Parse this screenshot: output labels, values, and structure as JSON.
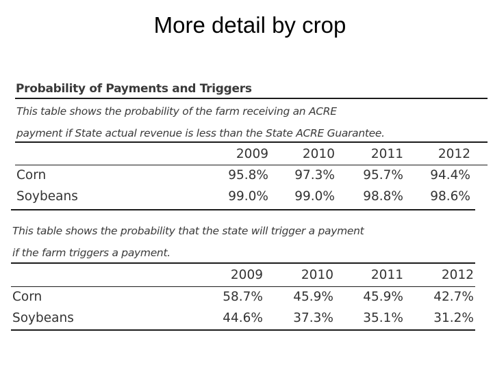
{
  "slide": {
    "title": "More detail by crop"
  },
  "document": {
    "heading": "Probability of Payments and Triggers",
    "table1": {
      "caption_line1": "This table shows the probability of the farm receiving an ACRE",
      "caption_line2": "payment if State actual revenue is less than the State ACRE Guarantee.",
      "columns": [
        "2009",
        "2010",
        "2011",
        "2012"
      ],
      "rows": [
        {
          "label": "Corn",
          "values": [
            "95.8%",
            "97.3%",
            "95.7%",
            "94.4%"
          ]
        },
        {
          "label": "Soybeans",
          "values": [
            "99.0%",
            "99.0%",
            "98.8%",
            "98.6%"
          ]
        }
      ]
    },
    "table2": {
      "caption_line1": "This table shows the probability that the state will trigger a payment",
      "caption_line2": "if the farm triggers a payment.",
      "columns": [
        "2009",
        "2010",
        "2011",
        "2012"
      ],
      "rows": [
        {
          "label": "Corn",
          "values": [
            "58.7%",
            "45.9%",
            "45.9%",
            "42.7%"
          ]
        },
        {
          "label": "Soybeans",
          "values": [
            "44.6%",
            "37.3%",
            "35.1%",
            "31.2%"
          ]
        }
      ]
    }
  }
}
